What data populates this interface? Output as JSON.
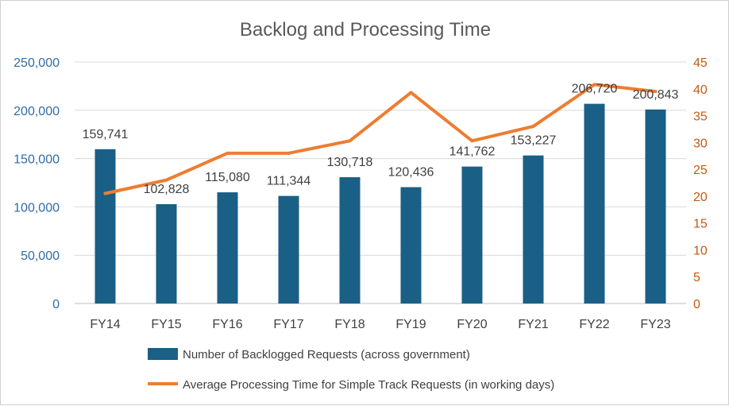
{
  "chart_data": {
    "type": "bar+line",
    "title": "Backlog and Processing Time",
    "categories": [
      "FY14",
      "FY15",
      "FY16",
      "FY17",
      "FY18",
      "FY19",
      "FY20",
      "FY21",
      "FY22",
      "FY23"
    ],
    "series": [
      {
        "name": "Number of Backlogged Requests (across government)",
        "type": "bar",
        "axis": "left",
        "values": [
          159741,
          102828,
          115080,
          111344,
          130718,
          120436,
          141762,
          153227,
          206720,
          200843
        ],
        "labels": [
          "159,741",
          "102,828",
          "115,080",
          "111,344",
          "130,718",
          "120,436",
          "141,762",
          "153,227",
          "206,720",
          "200,843"
        ],
        "color": "#1a5f86"
      },
      {
        "name": "Average Processing Time for Simple Track Requests (in working days)",
        "type": "line",
        "axis": "right",
        "values": [
          20.5,
          23,
          28,
          28,
          30.3,
          39.3,
          30.3,
          33,
          40.8,
          39.5
        ],
        "color": "#ed7d31"
      }
    ],
    "y_left": {
      "min": 0,
      "max": 250000,
      "step": 50000,
      "ticks": [
        "0",
        "50,000",
        "100,000",
        "150,000",
        "200,000",
        "250,000"
      ],
      "color": "#2e6da4"
    },
    "y_right": {
      "min": 0,
      "max": 45,
      "step": 5,
      "ticks": [
        "0",
        "5",
        "10",
        "15",
        "20",
        "25",
        "30",
        "35",
        "40",
        "45"
      ],
      "color": "#c55a11"
    },
    "grid": true,
    "legend_position": "bottom"
  }
}
